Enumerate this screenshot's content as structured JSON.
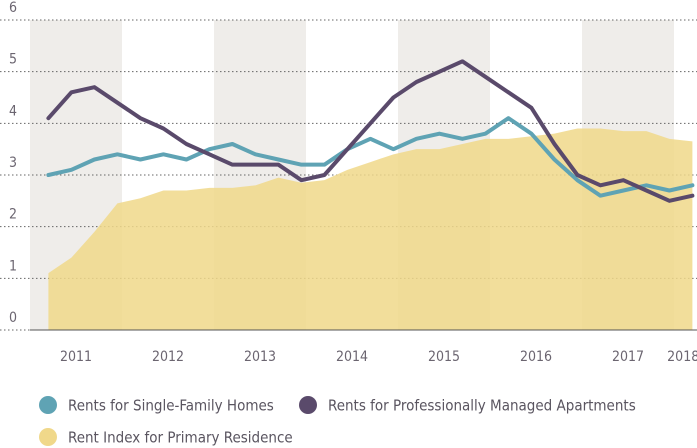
{
  "chart_data": {
    "type": "line",
    "x": [
      2011.2,
      2011.45,
      2011.7,
      2011.95,
      2012.2,
      2012.45,
      2012.7,
      2012.95,
      2013.2,
      2013.45,
      2013.7,
      2013.95,
      2014.2,
      2014.45,
      2014.7,
      2014.95,
      2015.2,
      2015.45,
      2015.7,
      2015.95,
      2016.2,
      2016.45,
      2016.7,
      2016.95,
      2017.2,
      2017.45,
      2017.7,
      2017.95,
      2018.2
    ],
    "series": [
      {
        "name": "Rent Index for Primary Residence",
        "color": "#f0d88a",
        "kind": "area",
        "values": [
          1.1,
          1.4,
          1.9,
          2.45,
          2.55,
          2.7,
          2.7,
          2.75,
          2.75,
          2.8,
          2.95,
          2.85,
          2.9,
          3.1,
          3.25,
          3.4,
          3.5,
          3.5,
          3.6,
          3.7,
          3.7,
          3.75,
          3.8,
          3.9,
          3.9,
          3.85,
          3.85,
          3.7,
          3.65
        ]
      },
      {
        "name": "Rents for Single-Family Homes",
        "color": "#5fa3b4",
        "kind": "line",
        "values": [
          3.0,
          3.1,
          3.3,
          3.4,
          3.3,
          3.4,
          3.3,
          3.5,
          3.6,
          3.4,
          3.3,
          3.2,
          3.2,
          3.5,
          3.7,
          3.5,
          3.7,
          3.8,
          3.7,
          3.8,
          4.1,
          3.8,
          3.3,
          2.9,
          2.6,
          2.7,
          2.8,
          2.7,
          2.8
        ]
      },
      {
        "name": "Rents for Professionally Managed Apartments",
        "color": "#5a4a6b",
        "kind": "line",
        "values": [
          4.1,
          4.6,
          4.7,
          4.4,
          4.1,
          3.9,
          3.6,
          3.4,
          3.2,
          3.2,
          3.2,
          2.9,
          3.0,
          3.5,
          4.0,
          4.5,
          4.8,
          5.0,
          5.2,
          4.9,
          4.6,
          4.3,
          3.6,
          3.0,
          2.8,
          2.9,
          2.7,
          2.5,
          2.6
        ]
      }
    ],
    "xlim": [
      2011,
      2018.25
    ],
    "xticks": [
      {
        "value": 2011.5,
        "label": "2011"
      },
      {
        "value": 2012.5,
        "label": "2012"
      },
      {
        "value": 2013.5,
        "label": "2013"
      },
      {
        "value": 2014.5,
        "label": "2014"
      },
      {
        "value": 2015.5,
        "label": "2015"
      },
      {
        "value": 2016.5,
        "label": "2016"
      },
      {
        "value": 2017.5,
        "label": "2017"
      },
      {
        "value": 2018.1,
        "label": "2018"
      }
    ],
    "ylim": [
      0,
      6
    ],
    "yticks": [
      0,
      1,
      2,
      3,
      4,
      5,
      6
    ],
    "grid": true
  }
}
